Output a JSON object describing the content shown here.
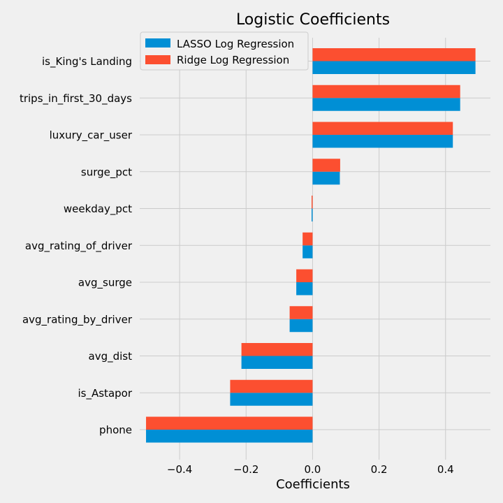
{
  "chart_data": {
    "type": "bar",
    "orientation": "horizontal",
    "title": "Logistic Coefficients",
    "xlabel": "Coefficients",
    "ylabel": "",
    "xlim": [
      -0.52,
      0.535
    ],
    "xticks": [
      -0.4,
      -0.2,
      0.0,
      0.2,
      0.4
    ],
    "xtick_labels": [
      "−0.4",
      "−0.2",
      "0.0",
      "0.2",
      "0.4"
    ],
    "grid": true,
    "legend_position": "top-left",
    "categories": [
      "phone",
      "is_Astapor",
      "avg_dist",
      "avg_rating_by_driver",
      "avg_surge",
      "avg_rating_of_driver",
      "weekday_pct",
      "surge_pct",
      "luxury_car_user",
      "trips_in_first_30_days",
      "is_King's Landing"
    ],
    "series": [
      {
        "name": "LASSO Log Regression",
        "color": "#008fd5",
        "values": [
          -0.501,
          -0.248,
          -0.214,
          -0.069,
          -0.049,
          -0.03,
          -0.003,
          0.082,
          0.422,
          0.444,
          0.49
        ]
      },
      {
        "name": "Ridge Log Regression",
        "color": "#fc4f30",
        "values": [
          -0.501,
          -0.248,
          -0.214,
          -0.069,
          -0.049,
          -0.03,
          -0.003,
          0.083,
          0.422,
          0.444,
          0.49
        ]
      }
    ]
  }
}
